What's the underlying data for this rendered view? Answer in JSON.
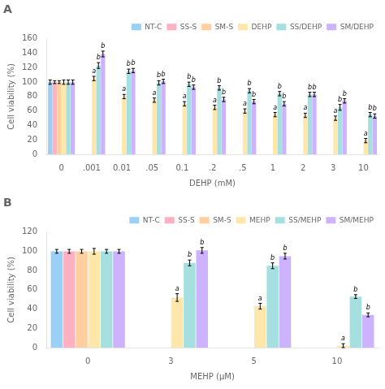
{
  "chart_data": [
    {
      "type": "bar",
      "title": "A",
      "xlabel": "DEHP (mM)",
      "ylabel": "Cell viability (%)",
      "categories": [
        "0",
        ".001",
        "0.01",
        ".05",
        "0.1",
        ".2",
        ".5",
        "1",
        "2",
        "3",
        "10"
      ],
      "series": [
        {
          "name": "NT-C",
          "values": [
            100,
            null,
            null,
            null,
            null,
            null,
            null,
            null,
            null,
            null,
            null
          ],
          "errors": [
            3,
            null,
            null,
            null,
            null,
            null,
            null,
            null,
            null,
            null,
            null
          ]
        },
        {
          "name": "SS-S",
          "values": [
            100,
            null,
            null,
            null,
            null,
            null,
            null,
            null,
            null,
            null,
            null
          ],
          "errors": [
            2,
            null,
            null,
            null,
            null,
            null,
            null,
            null,
            null,
            null,
            null
          ]
        },
        {
          "name": "SM-S",
          "values": [
            100,
            null,
            null,
            null,
            null,
            null,
            null,
            null,
            null,
            null,
            null
          ],
          "errors": [
            2,
            null,
            null,
            null,
            null,
            null,
            null,
            null,
            null,
            null,
            null
          ]
        },
        {
          "name": "DEHP",
          "values": [
            100,
            105,
            80,
            75,
            70,
            65,
            60,
            55,
            54,
            50,
            19
          ],
          "errors": [
            3,
            3,
            3,
            3,
            3,
            3,
            3,
            3,
            3,
            3,
            3
          ],
          "annotations": [
            null,
            "a",
            "a",
            "a",
            "a",
            "a",
            "a",
            "a",
            "a",
            "a",
            "a"
          ]
        },
        {
          "name": "SS/DEHP",
          "values": [
            100,
            123,
            115,
            99,
            97,
            92,
            88,
            84,
            83,
            65,
            55
          ],
          "errors": [
            3,
            4,
            3,
            3,
            3,
            3,
            3,
            3,
            3,
            4,
            3
          ],
          "annotations": [
            null,
            "b",
            "b",
            "b",
            "b",
            "b",
            "b",
            "b",
            "b",
            "b",
            "b"
          ]
        },
        {
          "name": "SM/DEHP",
          "values": [
            100,
            139,
            116,
            101,
            93,
            76,
            73,
            70,
            83,
            74,
            53
          ],
          "errors": [
            3,
            4,
            3,
            3,
            3,
            3,
            3,
            3,
            3,
            3,
            3
          ],
          "annotations": [
            null,
            "b",
            "b",
            "b",
            "b",
            "b",
            "b",
            "b",
            "b",
            "b",
            "b"
          ]
        }
      ],
      "ylim": [
        0,
        160
      ],
      "yticks": [
        0,
        20,
        40,
        60,
        80,
        100,
        120,
        140,
        160
      ],
      "grid": false,
      "legend": "upper right"
    },
    {
      "type": "bar",
      "title": "B",
      "xlabel": "MEHP (μM)",
      "ylabel": "Cell viability (%)",
      "categories": [
        "0",
        "3",
        "5",
        "10"
      ],
      "series": [
        {
          "name": "NT-C",
          "values": [
            100,
            null,
            null,
            null
          ],
          "errors": [
            2,
            null,
            null,
            null
          ]
        },
        {
          "name": "SS-S",
          "values": [
            100,
            null,
            null,
            null
          ],
          "errors": [
            2,
            null,
            null,
            null
          ]
        },
        {
          "name": "SM-S",
          "values": [
            100,
            null,
            null,
            null
          ],
          "errors": [
            2,
            null,
            null,
            null
          ]
        },
        {
          "name": "MEHP",
          "values": [
            100,
            52,
            43,
            2
          ],
          "errors": [
            3,
            4,
            3,
            2
          ],
          "annotations": [
            null,
            "a",
            "a",
            "a"
          ]
        },
        {
          "name": "SS/MEHP",
          "values": [
            100,
            88,
            85,
            53
          ],
          "errors": [
            2,
            3,
            3,
            2
          ],
          "annotations": [
            null,
            "b",
            "b",
            "b"
          ]
        },
        {
          "name": "SM/MEHP",
          "values": [
            100,
            101,
            95,
            34
          ],
          "errors": [
            2,
            3,
            3,
            2
          ],
          "annotations": [
            null,
            "b",
            "b",
            "b"
          ]
        }
      ],
      "ylim": [
        0,
        120
      ],
      "yticks": [
        0,
        20,
        40,
        60,
        80,
        100,
        120
      ],
      "grid": false,
      "legend": "upper right"
    }
  ]
}
